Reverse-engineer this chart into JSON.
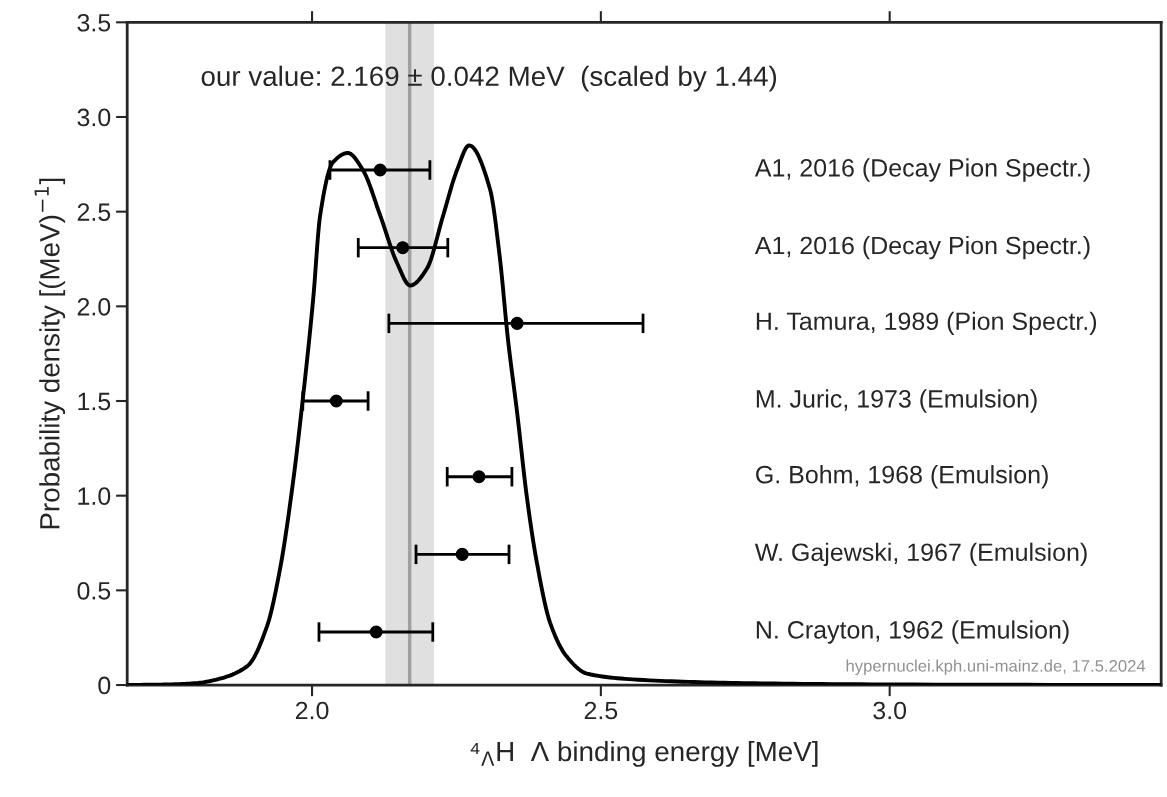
{
  "chart_data": {
    "type": "line",
    "title": "our value: 2.169 ± 0.042 MeV  (scaled by 1.44)",
    "xlabel": "⁴$_{Λ}$H  Λ binding energy [MeV]",
    "ylabel": "Probability density [(MeV)$^{−1}$]",
    "xlim": [
      1.68,
      3.47
    ],
    "xticks": [
      {
        "value": 2,
        "label": "2.0"
      },
      2.5,
      {
        "value": 3,
        "label": "3.0"
      }
    ],
    "ylim": [
      0,
      3.5
    ],
    "yticks": [
      0,
      0.5,
      {
        "value": 1,
        "label": "1.0"
      },
      1.5,
      {
        "value": 2,
        "label": "2.0"
      },
      2.5,
      {
        "value": 3,
        "label": "3.0"
      },
      3.5
    ],
    "series": [
      {
        "color": "#000000",
        "marker": "none",
        "line_style": "solid",
        "x": [
          1.68,
          1.75,
          1.8,
          1.836,
          1.888,
          1.922,
          1.945,
          1.967,
          1.984,
          2.002,
          2.014,
          2.036,
          2.062,
          2.088,
          2.118,
          2.147,
          2.17,
          2.199,
          2.227,
          2.251,
          2.272,
          2.308,
          2.325,
          2.339,
          2.355,
          2.372,
          2.389,
          2.412,
          2.441,
          2.476,
          2.555,
          2.671,
          2.8,
          3.0,
          3.47
        ],
        "values": [
          0,
          0.003,
          0.01,
          0.03,
          0.1,
          0.31,
          0.62,
          1.07,
          1.51,
          2.04,
          2.48,
          2.76,
          2.81,
          2.72,
          2.48,
          2.23,
          2.11,
          2.2,
          2.48,
          2.72,
          2.85,
          2.62,
          2.26,
          1.83,
          1.44,
          0.99,
          0.65,
          0.33,
          0.15,
          0.06,
          0.03,
          0.015,
          0.008,
          0.003,
          0
        ]
      },
      {
        "type": "scatter",
        "color": "#000000",
        "marker": "circle",
        "x": [
          2.118,
          2.157,
          2.355,
          2.042,
          2.289,
          2.26,
          2.111
        ],
        "values": [
          2.72,
          2.31,
          1.91,
          1.5,
          1.1,
          0.69,
          0.28
        ],
        "xerrors": [
          [
            2.031,
            2.204
          ],
          [
            2.08,
            2.235
          ],
          [
            2.133,
            2.573
          ],
          [
            1.984,
            2.097
          ],
          [
            2.234,
            2.346
          ],
          [
            2.18,
            2.341
          ],
          [
            2.012,
            2.209
          ]
        ]
      }
    ],
    "bands": [
      {
        "axis": "x",
        "from": 2.127,
        "to": 2.211,
        "color": "#e0e0e0"
      }
    ],
    "ref_lines": [
      {
        "axis": "x",
        "value": 2.169,
        "color": "#a0a0a0"
      }
    ],
    "annotations": [
      "A1, 2016 (Decay Pion Spectr.)",
      "A1, 2016 (Decay Pion Spectr.)",
      "H. Tamura, 1989 (Pion Spectr.)",
      "M. Juric, 1973 (Emulsion)",
      "G. Bohm, 1968 (Emulsion)",
      "W. Gajewski, 1967 (Emulsion)",
      "N. Crayton, 1962 (Emulsion)",
      "hypernuclei.kph.uni-mainz.de, 17.5.2024"
    ],
    "grid": false,
    "legend": false
  }
}
